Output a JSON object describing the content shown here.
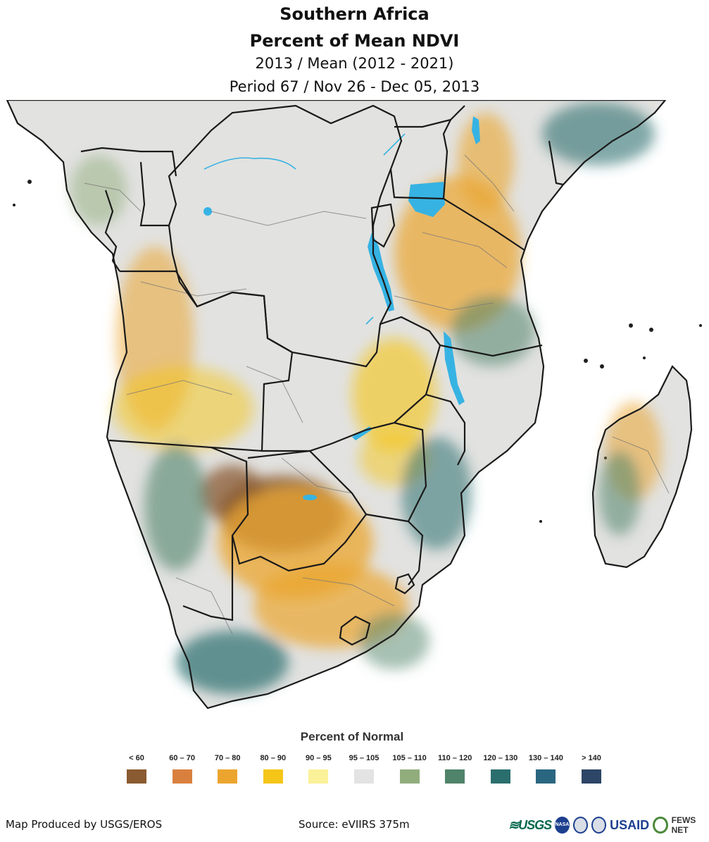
{
  "title": {
    "line1": "Southern Africa",
    "line2": "Percent of Mean NDVI",
    "line3": "2013 / Mean (2012 - 2021)",
    "line4": "Period 67 / Nov 26 - Dec 05, 2013"
  },
  "legend": {
    "title": "Percent of Normal",
    "classes": [
      {
        "label": "< 60",
        "color": "#8a5a30"
      },
      {
        "label": "60 – 70",
        "color": "#d9803e"
      },
      {
        "label": "70 – 80",
        "color": "#eba52e"
      },
      {
        "label": "80 – 90",
        "color": "#f5c518"
      },
      {
        "label": "90 – 95",
        "color": "#fbf199"
      },
      {
        "label": "95 – 105",
        "color": "#e3e3e3"
      },
      {
        "label": "105 – 110",
        "color": "#91ad7c"
      },
      {
        "label": "110 – 120",
        "color": "#4f836a"
      },
      {
        "label": "120 – 130",
        "color": "#2b6e6e"
      },
      {
        "label": "130 – 140",
        "color": "#2a6680"
      },
      {
        "label": "> 140",
        "color": "#2d4567"
      }
    ]
  },
  "footer": {
    "producer": "Map Produced by USGS/EROS",
    "source": "Source: eVIIRS 375m",
    "logo_text": {
      "usgs": "≋USGS",
      "nasa": "NASA",
      "usaid": "USAID",
      "fews": "FEWS NET"
    }
  },
  "map_colors": {
    "neutral": "#e2e2e0",
    "lake": "#36b3e3",
    "border": "#1a1a1a",
    "admin": "#777777"
  }
}
